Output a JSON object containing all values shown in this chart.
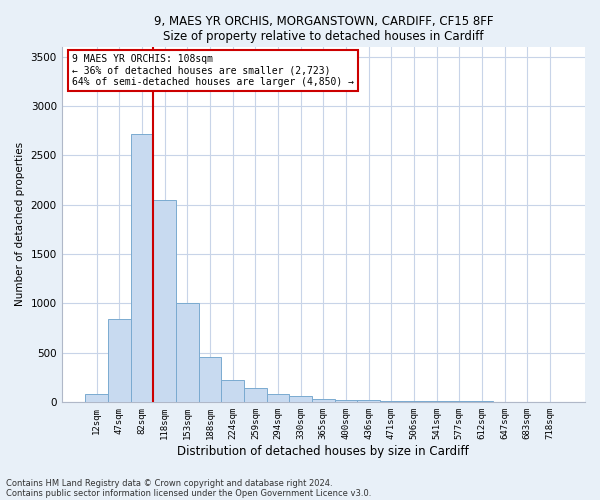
{
  "title1": "9, MAES YR ORCHIS, MORGANSTOWN, CARDIFF, CF15 8FF",
  "title2": "Size of property relative to detached houses in Cardiff",
  "xlabel": "Distribution of detached houses by size in Cardiff",
  "ylabel": "Number of detached properties",
  "categories": [
    "12sqm",
    "47sqm",
    "82sqm",
    "118sqm",
    "153sqm",
    "188sqm",
    "224sqm",
    "259sqm",
    "294sqm",
    "330sqm",
    "365sqm",
    "400sqm",
    "436sqm",
    "471sqm",
    "506sqm",
    "541sqm",
    "577sqm",
    "612sqm",
    "647sqm",
    "683sqm",
    "718sqm"
  ],
  "values": [
    75,
    840,
    2720,
    2050,
    1000,
    450,
    220,
    140,
    75,
    55,
    30,
    20,
    15,
    10,
    8,
    5,
    5,
    4,
    3,
    2,
    2
  ],
  "bar_color": "#c8daf0",
  "bar_edge_color": "#7aaad0",
  "vline_x": 2.5,
  "vline_color": "#cc0000",
  "annotation_line1": "9 MAES YR ORCHIS: 108sqm",
  "annotation_line2": "← 36% of detached houses are smaller (2,723)",
  "annotation_line3": "64% of semi-detached houses are larger (4,850) →",
  "annotation_box_facecolor": "#ffffff",
  "annotation_box_edgecolor": "#cc0000",
  "ylim": [
    0,
    3600
  ],
  "yticks": [
    0,
    500,
    1000,
    1500,
    2000,
    2500,
    3000,
    3500
  ],
  "footnote1": "Contains HM Land Registry data © Crown copyright and database right 2024.",
  "footnote2": "Contains public sector information licensed under the Open Government Licence v3.0.",
  "fig_bg_color": "#e8f0f8",
  "plot_bg_color": "#ffffff",
  "grid_color": "#c8d4e8"
}
